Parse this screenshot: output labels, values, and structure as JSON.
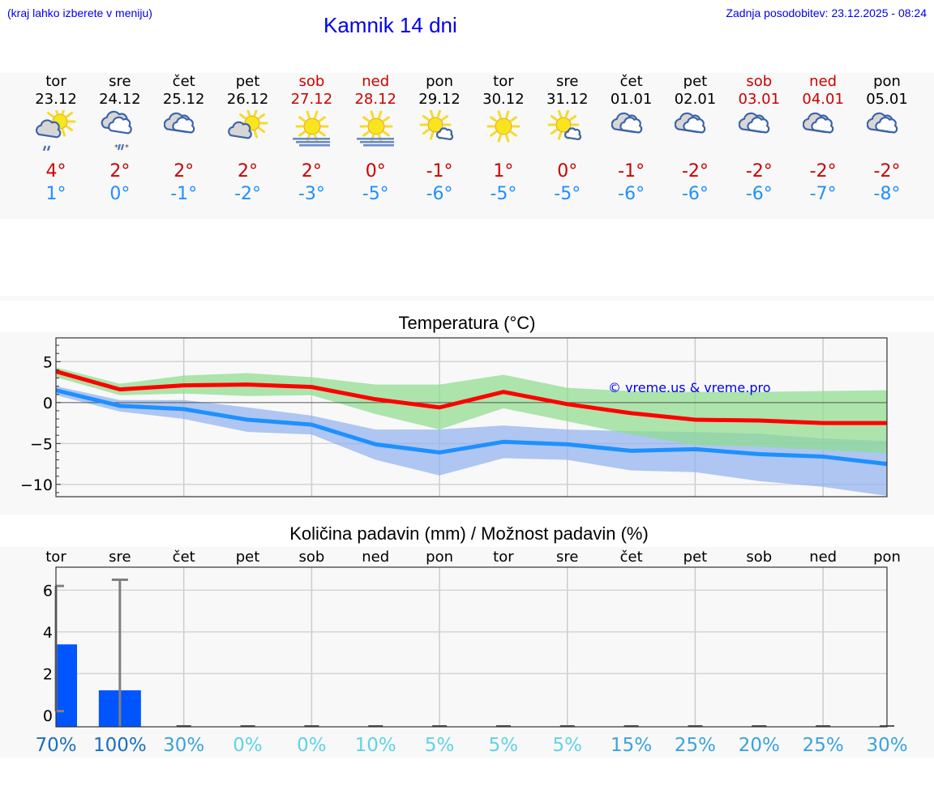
{
  "header": {
    "hint": "(kraj lahko izberete v meniju)",
    "title": "Kamnik 14 dni",
    "updated": "Zadnja posodobitev: 23.12.2025 - 08:24"
  },
  "colors": {
    "link_blue": "#0000ee",
    "max_temp": "#cc0000",
    "min_temp": "#1e90ff",
    "max_line": "#ff0000",
    "min_line": "#1e90ff",
    "max_band": "#a8e6a8",
    "min_band": "#a6c4f2",
    "precip_bar": "#0055ff",
    "panel_bg": "#f8f8f8"
  },
  "days": [
    {
      "name": "tor",
      "date": "23.12",
      "weekend": false,
      "icon": "sun-cloud-rain-icon",
      "tmax": "4°",
      "tmin": "1°"
    },
    {
      "name": "sre",
      "date": "24.12",
      "weekend": false,
      "icon": "clouds-sleet-icon",
      "tmax": "2°",
      "tmin": "0°"
    },
    {
      "name": "čet",
      "date": "25.12",
      "weekend": false,
      "icon": "overcast-icon",
      "tmax": "2°",
      "tmin": "-1°"
    },
    {
      "name": "pet",
      "date": "26.12",
      "weekend": false,
      "icon": "sun-cloud-icon",
      "tmax": "2°",
      "tmin": "-2°"
    },
    {
      "name": "sob",
      "date": "27.12",
      "weekend": true,
      "icon": "sun-fog-icon",
      "tmax": "2°",
      "tmin": "-3°"
    },
    {
      "name": "ned",
      "date": "28.12",
      "weekend": true,
      "icon": "sun-fog-icon",
      "tmax": "0°",
      "tmin": "-5°"
    },
    {
      "name": "pon",
      "date": "29.12",
      "weekend": false,
      "icon": "sun-small-cloud-icon",
      "tmax": "-1°",
      "tmin": "-6°"
    },
    {
      "name": "tor",
      "date": "30.12",
      "weekend": false,
      "icon": "sun-icon",
      "tmax": "1°",
      "tmin": "-5°"
    },
    {
      "name": "sre",
      "date": "31.12",
      "weekend": false,
      "icon": "sun-small-cloud-icon",
      "tmax": "0°",
      "tmin": "-5°"
    },
    {
      "name": "čet",
      "date": "01.01",
      "weekend": false,
      "icon": "overcast-icon",
      "tmax": "-1°",
      "tmin": "-6°"
    },
    {
      "name": "pet",
      "date": "02.01",
      "weekend": false,
      "icon": "overcast-icon",
      "tmax": "-2°",
      "tmin": "-6°"
    },
    {
      "name": "sob",
      "date": "03.01",
      "weekend": true,
      "icon": "overcast-icon",
      "tmax": "-2°",
      "tmin": "-6°"
    },
    {
      "name": "ned",
      "date": "04.01",
      "weekend": true,
      "icon": "overcast-icon",
      "tmax": "-2°",
      "tmin": "-7°"
    },
    {
      "name": "pon",
      "date": "05.01",
      "weekend": false,
      "icon": "overcast-icon",
      "tmax": "-2°",
      "tmin": "-8°"
    }
  ],
  "chart_data": [
    {
      "type": "line",
      "title": "Temperatura (°C)",
      "xlabel": "",
      "ylabel": "",
      "categories": [
        "23.12",
        "24.12",
        "25.12",
        "26.12",
        "27.12",
        "28.12",
        "29.12",
        "30.12",
        "31.12",
        "01.01",
        "02.01",
        "03.01",
        "04.01",
        "05.01"
      ],
      "series": [
        {
          "name": "Max temperatura",
          "color": "#ff0000",
          "values": [
            3.8,
            1.6,
            2.1,
            2.2,
            1.9,
            0.4,
            -0.6,
            1.3,
            -0.2,
            -1.3,
            -2.1,
            -2.2,
            -2.5,
            -2.5
          ]
        },
        {
          "name": "Max razpon spodaj",
          "color": "#a8e6a8",
          "values": [
            3.1,
            0.9,
            1.1,
            0.8,
            0.9,
            -1.4,
            -3.3,
            -0.7,
            -2.3,
            -3.9,
            -5.2,
            -5.4,
            -5.8,
            -6.2
          ]
        },
        {
          "name": "Max razpon zgoraj",
          "color": "#a8e6a8",
          "values": [
            4.3,
            2.3,
            3.3,
            3.6,
            3.1,
            2.2,
            2.2,
            3.4,
            1.8,
            1.4,
            1.3,
            1.3,
            1.4,
            1.5
          ]
        },
        {
          "name": "Min temperatura",
          "color": "#1e90ff",
          "values": [
            1.5,
            -0.4,
            -0.8,
            -2.1,
            -2.7,
            -5.1,
            -6.1,
            -4.8,
            -5.1,
            -5.9,
            -5.7,
            -6.3,
            -6.6,
            -7.5
          ]
        },
        {
          "name": "Min razpon spodaj",
          "color": "#a6c4f2",
          "values": [
            0.9,
            -1.1,
            -2.0,
            -3.6,
            -3.9,
            -7.0,
            -8.9,
            -6.8,
            -7.0,
            -8.3,
            -8.5,
            -9.6,
            -10.3,
            -11.4
          ]
        },
        {
          "name": "Min razpon zgoraj",
          "color": "#a6c4f2",
          "values": [
            2.0,
            0.3,
            0.3,
            -0.6,
            -1.6,
            -3.3,
            -3.3,
            -2.8,
            -3.3,
            -3.5,
            -3.6,
            -3.8,
            -4.4,
            -4.7
          ]
        }
      ],
      "yticks": [
        5,
        0,
        -5,
        -10
      ],
      "ylim": [
        -11.5,
        7.9
      ],
      "grid": true,
      "annotation": "© vreme.us & vreme.pro"
    },
    {
      "type": "bar",
      "title": "Količina padavin (mm) / Možnost padavin (%)",
      "categories": [
        "tor",
        "sre",
        "čet",
        "pet",
        "sob",
        "ned",
        "pon",
        "tor",
        "sre",
        "čet",
        "pet",
        "sob",
        "ned",
        "pon"
      ],
      "series": [
        {
          "name": "Količina padavin (mm)",
          "color": "#0055ff",
          "values": [
            3.4,
            1.2,
            0,
            0,
            0,
            0,
            0,
            0,
            0,
            0,
            0,
            0,
            0,
            0
          ]
        },
        {
          "name": "Razpon spodaj (mm)",
          "color": "#808080",
          "values": [
            0.2,
            0,
            0,
            0,
            0,
            0,
            0,
            0,
            0,
            0,
            0,
            0,
            0,
            0
          ]
        },
        {
          "name": "Razpon zgoraj (mm)",
          "color": "#808080",
          "values": [
            6.2,
            6.5,
            0,
            0,
            0,
            0,
            0,
            0,
            0,
            0,
            0,
            0,
            0,
            0
          ]
        }
      ],
      "probability": [
        "70%",
        "100%",
        "30%",
        "0%",
        "0%",
        "10%",
        "5%",
        "5%",
        "5%",
        "15%",
        "25%",
        "20%",
        "25%",
        "30%"
      ],
      "probability_colors": [
        "#1a6fc0",
        "#1a6fc0",
        "#3aa3dc",
        "#5fd3e6",
        "#5fd3e6",
        "#5fd3e6",
        "#5fd3e6",
        "#5fd3e6",
        "#5fd3e6",
        "#3aa3dc",
        "#3aa3dc",
        "#3aa3dc",
        "#3aa3dc",
        "#3aa3dc"
      ],
      "yticks": [
        0,
        2,
        4,
        6
      ],
      "ylim": [
        -0.55,
        7.1
      ],
      "grid": true
    }
  ]
}
